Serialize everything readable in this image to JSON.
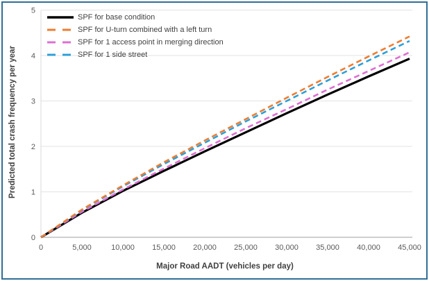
{
  "frame": {
    "border_color": "#2f6e96",
    "background_color": "#ffffff"
  },
  "chart_data": {
    "type": "line",
    "title": "",
    "xlabel": "Major Road AADT (vehicles per day)",
    "ylabel": "Predicted total crash frequency per year",
    "xlim": [
      0,
      45000
    ],
    "ylim": [
      0,
      5
    ],
    "grid": "horizontal-light-gray",
    "legend_position": "top-left-inside",
    "xtick_values": [
      0,
      5000,
      10000,
      15000,
      20000,
      25000,
      30000,
      35000,
      40000,
      45000
    ],
    "xtick_labels": [
      "0",
      "5,000",
      "10,000",
      "15,000",
      "20,000",
      "25,000",
      "30,000",
      "35,000",
      "40,000",
      "45,000"
    ],
    "ytick_values": [
      0,
      1,
      2,
      3,
      4,
      5
    ],
    "ytick_labels": [
      "0",
      "1",
      "2",
      "3",
      "4",
      "5"
    ],
    "x": [
      0,
      5000,
      10000,
      15000,
      20000,
      25000,
      30000,
      35000,
      40000,
      45000
    ],
    "series": [
      {
        "name": "SPF for base condition",
        "color": "#000000",
        "style": "solid",
        "values": [
          0,
          0.54,
          1.02,
          1.46,
          1.89,
          2.31,
          2.73,
          3.14,
          3.54,
          3.93
        ]
      },
      {
        "name": "SPF for U-turn combined with a left turn",
        "color": "#ED7D31",
        "style": "dashed",
        "values": [
          0,
          0.61,
          1.14,
          1.65,
          2.13,
          2.6,
          3.07,
          3.53,
          3.98,
          4.42
        ]
      },
      {
        "name": "SPF for 1 access point in merging direction",
        "color": "#DD6FD2",
        "style": "dashed",
        "values": [
          0,
          0.56,
          1.05,
          1.51,
          1.96,
          2.4,
          2.82,
          3.25,
          3.66,
          4.07
        ]
      },
      {
        "name": "SPF for 1 side street",
        "color": "#2D9FD8",
        "style": "dashed",
        "values": [
          0,
          0.6,
          1.12,
          1.61,
          2.08,
          2.55,
          3.0,
          3.45,
          3.89,
          4.32
        ]
      }
    ],
    "draw_order": [
      0,
      2,
      3,
      1
    ],
    "colors": {
      "gridline": "#e3e3e3",
      "x_axis_line": "#bfbfbf",
      "y_axis_line": "#d9d9d9",
      "tick_label": "#595959",
      "axis_title": "#3f3f3f"
    }
  }
}
